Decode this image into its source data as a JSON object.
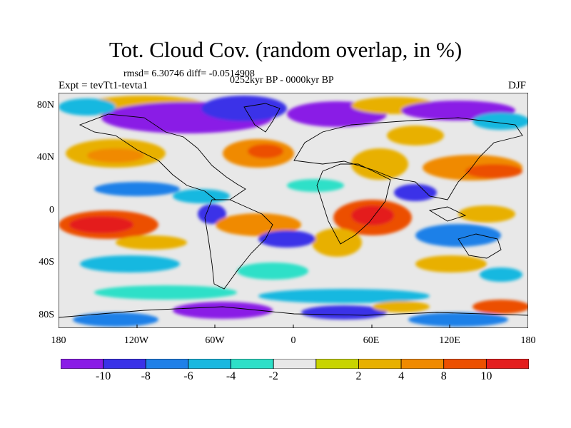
{
  "title": "Tot. Cloud Cov. (random overlap, in %)",
  "stats": "rmsd= 6.30746  diff= -0.0514908",
  "period": "0252kyr BP - 0000kyr BP",
  "experiment": "Expt = tevTt1-tevta1",
  "season": "DJF",
  "lat_ticks": [
    "80N",
    "40N",
    "0",
    "40S",
    "80S"
  ],
  "lon_ticks": [
    "180",
    "120W",
    "60W",
    "0",
    "60E",
    "120E",
    "180"
  ],
  "colorbar": {
    "colors": [
      "#8a1ce6",
      "#3a32e8",
      "#1f80e8",
      "#19b8e0",
      "#2ee0c8",
      "#e8e8e8",
      "#c8d400",
      "#e8b000",
      "#f08a00",
      "#ec5000",
      "#e41e1e"
    ],
    "labels": [
      "-10",
      "-8",
      "-6",
      "-4",
      "-2",
      "2",
      "4",
      "8",
      "10"
    ]
  }
}
